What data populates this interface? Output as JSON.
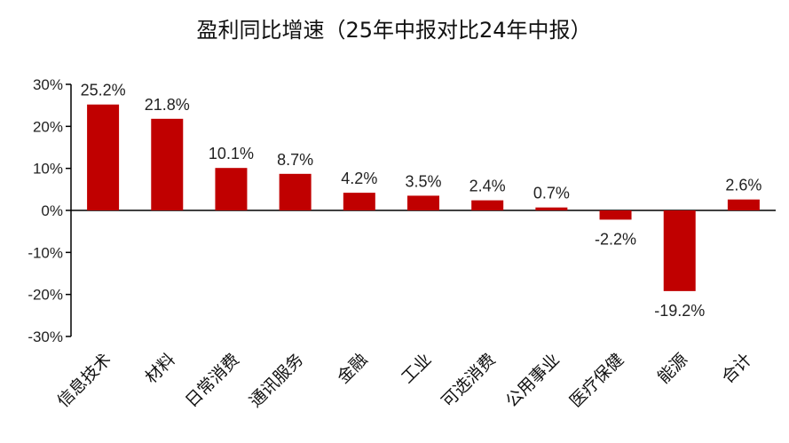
{
  "chart_data": {
    "type": "bar",
    "title": "盈利同比增速（25年中报对比24年中报）",
    "xlabel": "",
    "ylabel": "",
    "ylim": [
      -30,
      30
    ],
    "yticks": [
      "30%",
      "20%",
      "10%",
      "0%",
      "-10%",
      "-20%",
      "-30%"
    ],
    "categories": [
      "信息技术",
      "材料",
      "日常消费",
      "通讯服务",
      "金融",
      "工业",
      "可选消费",
      "公用事业",
      "医疗保健",
      "能源",
      "合计"
    ],
    "values": [
      25.2,
      21.8,
      10.1,
      8.7,
      4.2,
      3.5,
      2.4,
      0.7,
      -2.2,
      -19.2,
      2.6
    ],
    "value_labels": [
      "25.2%",
      "21.8%",
      "10.1%",
      "8.7%",
      "4.2%",
      "3.5%",
      "2.4%",
      "0.7%",
      "-2.2%",
      "-19.2%",
      "2.6%"
    ],
    "bar_color": "#C00000",
    "grid": false,
    "legend": "none"
  }
}
